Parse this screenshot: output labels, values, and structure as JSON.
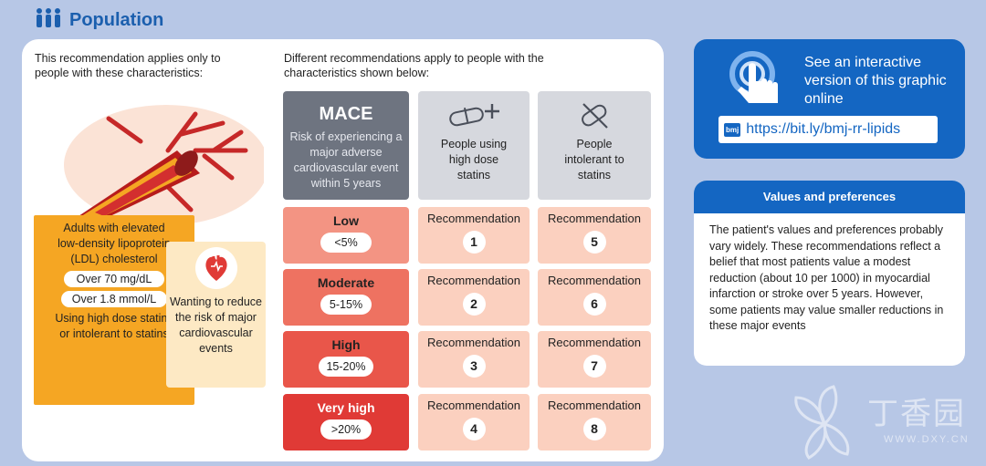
{
  "header": {
    "title": "Population",
    "icon": "people-icon"
  },
  "left": {
    "intro": "This recommendation applies only to people with these characteristics:",
    "adults_text": "Adults with elevated low-density lipoprotein (LDL) cholesterol",
    "ldl_mg": "Over 70 mg/dL",
    "ldl_mmol": "Over 1.8 mmol/L",
    "statins_text": "Using high dose statins or intolerant to statins",
    "wanting_text": "Wanting to reduce the risk of major cardiovascular events"
  },
  "grid": {
    "intro": "Different recommendations apply to people with the characteristics shown below:",
    "mace_title": "MACE",
    "mace_sub": "Risk of experiencing a major adverse cardiovascular event within 5 years",
    "col1": "People using high dose statins",
    "col2": "People intolerant to statins",
    "risks": [
      {
        "label": "Low",
        "value": "<5%"
      },
      {
        "label": "Moderate",
        "value": "5-15%"
      },
      {
        "label": "High",
        "value": "15-20%"
      },
      {
        "label": "Very high",
        "value": ">20%"
      }
    ],
    "rec_label": "Recommendation",
    "recs": [
      [
        "1",
        "5"
      ],
      [
        "2",
        "6"
      ],
      [
        "3",
        "7"
      ],
      [
        "4",
        "8"
      ]
    ]
  },
  "interactive": {
    "text": "See an interactive version of this graphic online",
    "badge": "bmj",
    "url": "https://bit.ly/bmj-rr-lipids"
  },
  "values": {
    "title": "Values and preferences",
    "body": "The patient's values and preferences probably vary widely. These recommendations reflect a belief that most patients value a modest reduction (about 10 per 1000) in myocardial infarction or stroke over 5 years. However, some patients may value smaller reductions in these major events"
  },
  "watermark": {
    "cn": "丁香园",
    "en": "WWW.DXY.CN"
  },
  "colors": {
    "brand_blue": "#1466c2",
    "orange": "#f5a623",
    "mace_grey": "#6e7480",
    "risk_low": "#f39483",
    "risk_moderate": "#ee7261",
    "risk_high": "#e9564a",
    "risk_very_high": "#e03a36",
    "rec_fill": "#fbd0bf"
  }
}
